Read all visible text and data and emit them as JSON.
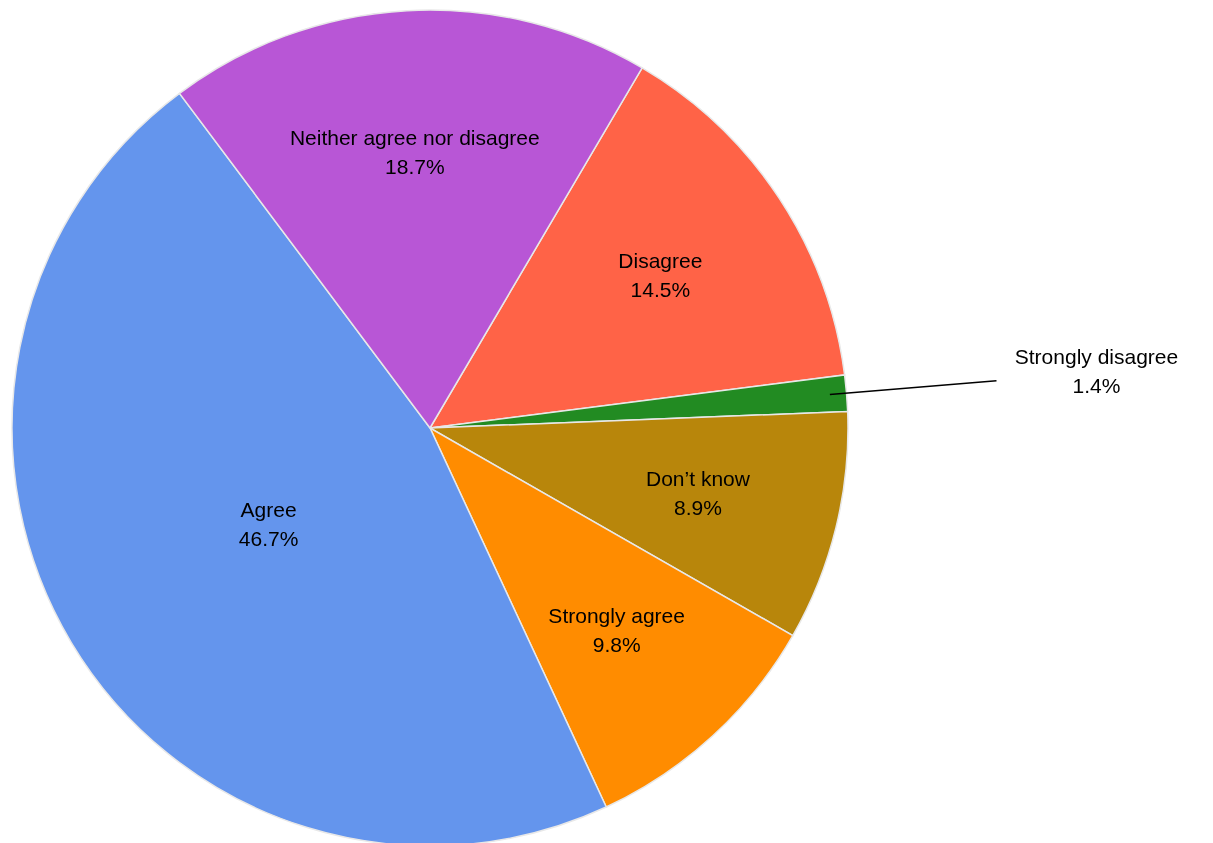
{
  "chart_data": {
    "type": "pie",
    "categories": [
      "Disagree",
      "Strongly disagree",
      "Don’t know",
      "Strongly agree",
      "Agree",
      "Neither agree nor disagree"
    ],
    "values": [
      14.5,
      1.4,
      8.9,
      9.8,
      46.7,
      18.7
    ],
    "colors": [
      "#ff6347",
      "#228b22",
      "#b8860b",
      "#ff8c00",
      "#6495ed",
      "#b856d6"
    ],
    "value_labels": [
      "14.5%",
      "1.4%",
      "8.9%",
      "9.8%",
      "46.7%",
      "18.7%"
    ],
    "legend": false
  }
}
